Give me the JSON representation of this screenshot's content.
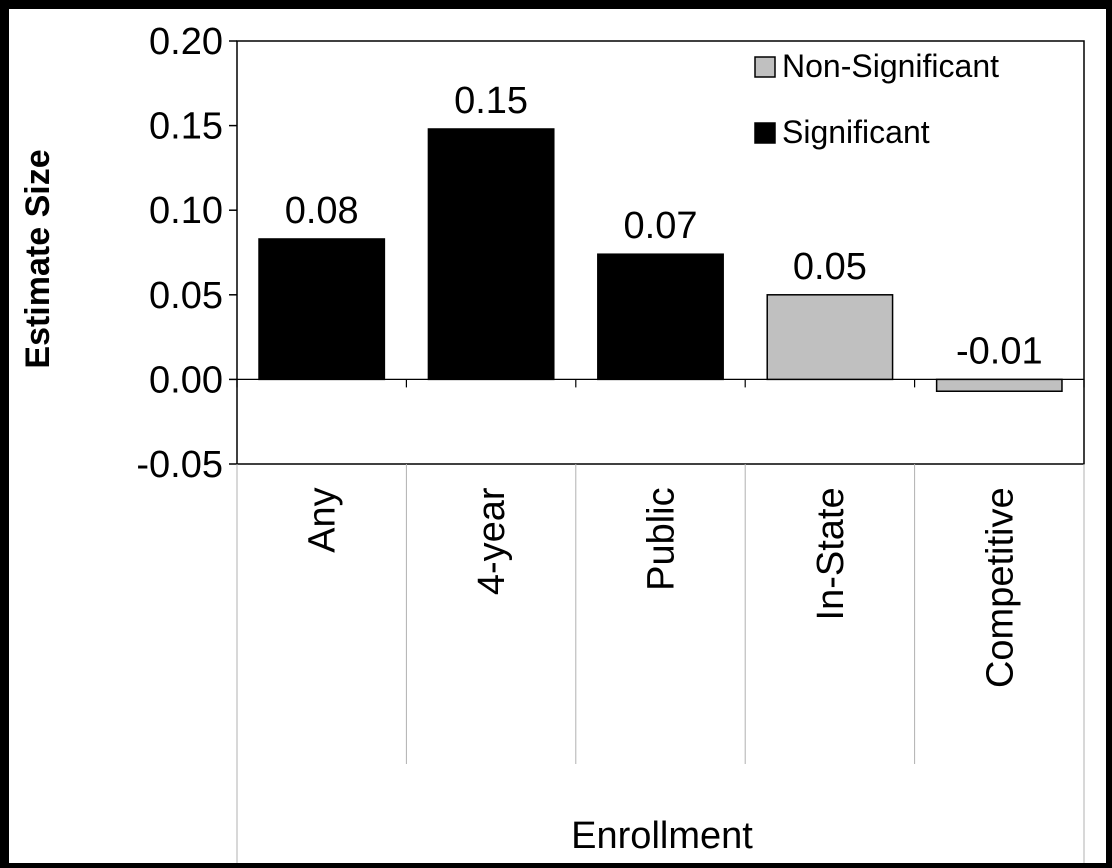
{
  "chart_data": {
    "type": "bar",
    "title": "",
    "xlabel": "Enrollment",
    "ylabel": "Estimate Size",
    "ylim": [
      -0.05,
      0.2
    ],
    "yticks": [
      "-0.05",
      "0.00",
      "0.05",
      "0.10",
      "0.15",
      "0.20"
    ],
    "ytick_values": [
      -0.05,
      0.0,
      0.05,
      0.1,
      0.15,
      0.2
    ],
    "categories": [
      "Any",
      "4-year",
      "Public",
      "In-State",
      "Competitive"
    ],
    "values": [
      0.083,
      0.148,
      0.074,
      0.05,
      -0.007
    ],
    "data_labels": [
      "0.08",
      "0.15",
      "0.07",
      "0.05",
      "-0.01"
    ],
    "significance": [
      "Significant",
      "Significant",
      "Significant",
      "Non-Significant",
      "Non-Significant"
    ],
    "grid": false,
    "legend_position": "top-right",
    "legend": [
      {
        "label": "Non-Significant",
        "color": "#c0c0c0"
      },
      {
        "label": "Significant",
        "color": "#000000"
      }
    ],
    "colors": {
      "Significant": "#000000",
      "Non-Significant": "#c0c0c0"
    }
  }
}
